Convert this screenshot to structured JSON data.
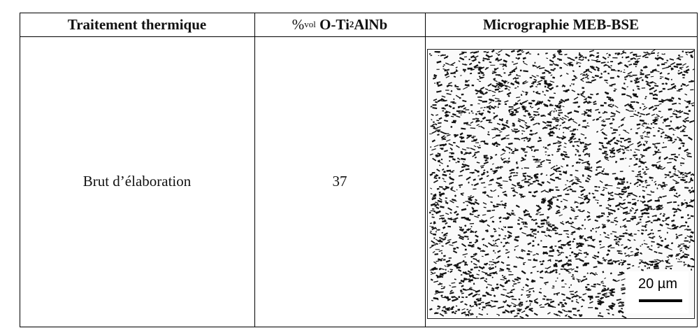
{
  "table": {
    "header": [
      {
        "text": "Traitement thermique"
      },
      {
        "parts": [
          "%",
          "vol",
          " O-Ti",
          "2",
          "AlNb"
        ]
      },
      {
        "text": "Micrographie MEB-BSE"
      }
    ],
    "rows": [
      {
        "treatment": "Brut d’élaboration",
        "fraction": 37,
        "scale_bar": "20 µm"
      }
    ]
  }
}
